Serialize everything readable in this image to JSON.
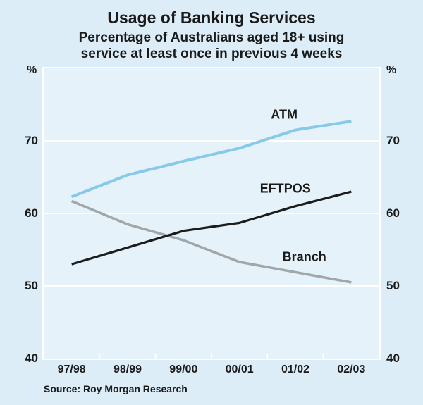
{
  "source_note": "Source: Roy Morgan Research",
  "colors": {
    "page_background": "#dcedf7",
    "plot_background": "#e5f2fa",
    "grid": "#ffffff",
    "text": "#1a1a1a",
    "atm_line": "#87c9e9",
    "eftpos_line": "#1c1c1c",
    "branch_line": "#a1a6a9"
  },
  "chart_data": {
    "type": "line",
    "title": "Usage of Banking Services",
    "subtitle_lines": [
      "Percentage of Australians aged 18+ using",
      "service at least once in previous 4 weeks"
    ],
    "unit": "%",
    "categories": [
      "97/98",
      "98/99",
      "99/00",
      "00/01",
      "01/02",
      "02/03"
    ],
    "series": [
      {
        "name": "ATM",
        "color": "#87c9e9",
        "values": [
          62.3,
          65.3,
          67.2,
          69.0,
          71.5,
          72.7
        ],
        "label_at": {
          "x": 3.8,
          "y": 73.6
        }
      },
      {
        "name": "EFTPOS",
        "color": "#1c1c1c",
        "values": [
          53.0,
          55.3,
          57.6,
          58.7,
          61.0,
          63.0
        ],
        "label_at": {
          "x": 3.82,
          "y": 63.4
        }
      },
      {
        "name": "Branch",
        "color": "#a1a6a9",
        "values": [
          61.7,
          58.5,
          56.3,
          53.3,
          51.9,
          50.5
        ],
        "label_at": {
          "x": 4.16,
          "y": 54.0
        }
      }
    ],
    "ylim": [
      40,
      80
    ],
    "yticks": [
      40,
      50,
      60,
      70
    ],
    "gridlines": [
      50,
      60,
      70
    ],
    "grid": true,
    "legend_position": "inline-labels",
    "axis_unit_left": "%",
    "axis_unit_right": "%"
  }
}
